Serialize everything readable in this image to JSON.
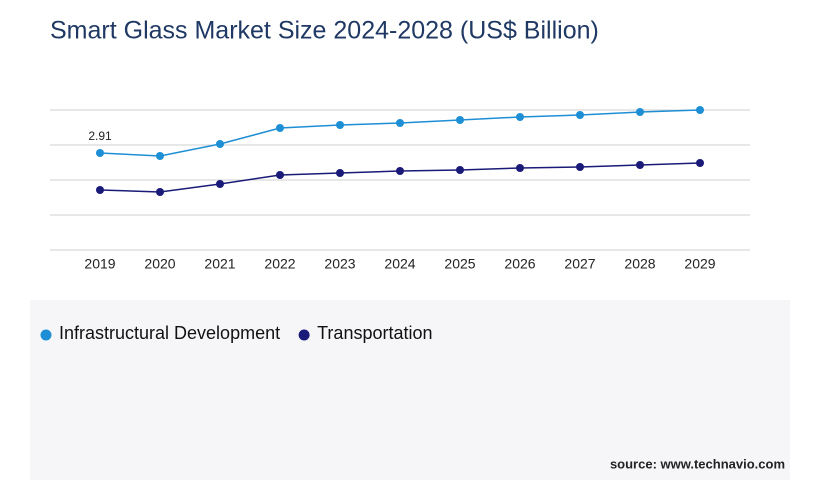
{
  "chart_data": {
    "type": "line",
    "title": "Smart Glass Market Size 2024-2028 (US$ Billion)",
    "categories": [
      "2019",
      "2020",
      "2021",
      "2022",
      "2023",
      "2024",
      "2025",
      "2026",
      "2027",
      "2028",
      "2029"
    ],
    "series": [
      {
        "name": "Infrastructural Development",
        "color": "#1e8fd5",
        "values": [
          2.91,
          2.82,
          3.18,
          3.66,
          3.75,
          3.81,
          3.9,
          3.99,
          4.05,
          4.14,
          4.2
        ],
        "value_labels": [
          "2.91",
          null,
          null,
          null,
          null,
          null,
          null,
          null,
          null,
          null,
          null
        ]
      },
      {
        "name": "Transportation",
        "color": "#1a1a78",
        "values": [
          1.8,
          1.74,
          1.98,
          2.25,
          2.31,
          2.37,
          2.4,
          2.46,
          2.49,
          2.55,
          2.61
        ]
      }
    ],
    "ylim": [
      0,
      4.2
    ],
    "yticks": [
      0,
      1.05,
      2.1,
      3.15,
      4.2
    ],
    "grid": true,
    "source": "source: www.technavio.com"
  }
}
